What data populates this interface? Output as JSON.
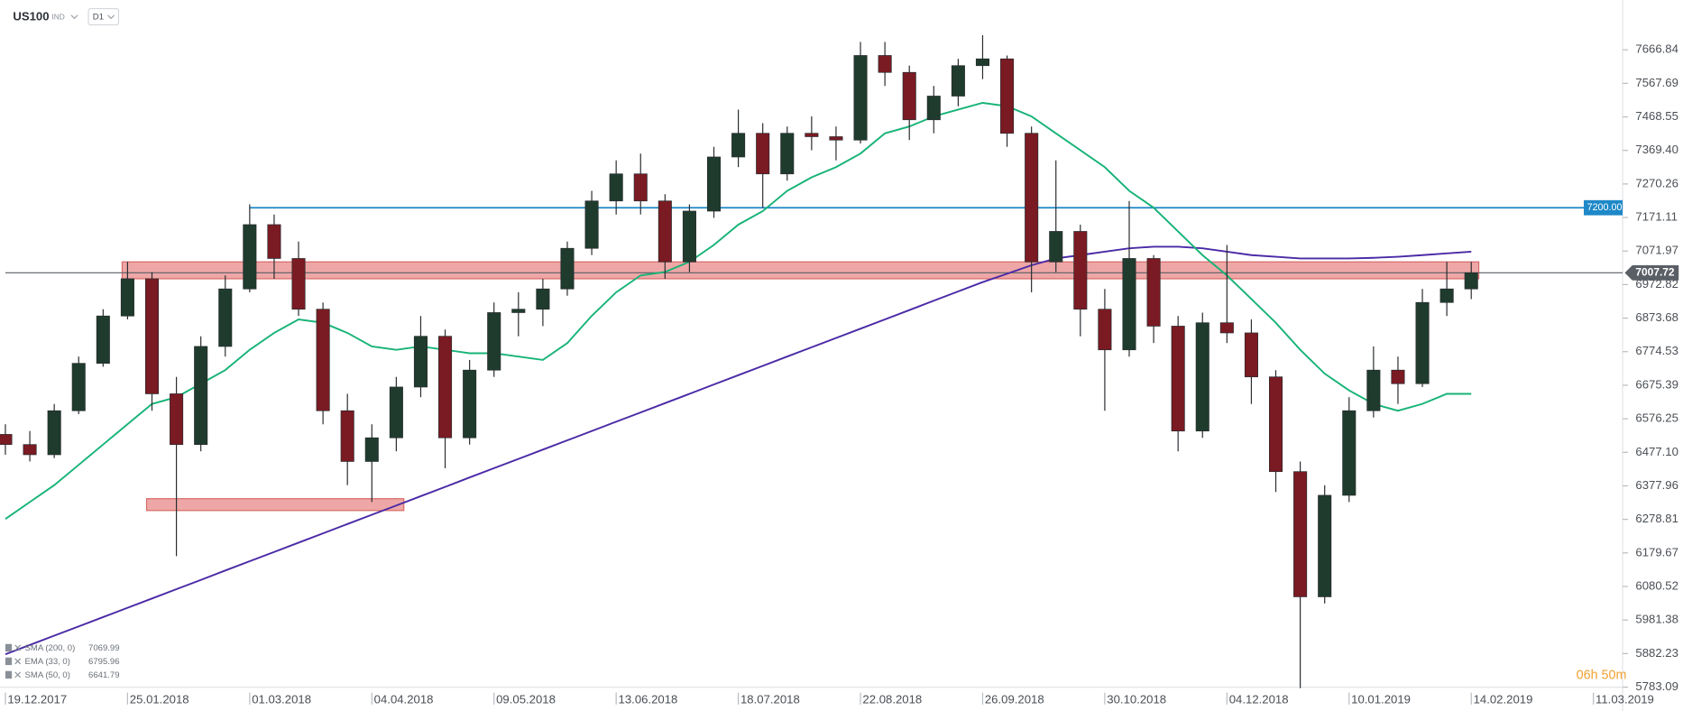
{
  "header": {
    "symbol": "US100",
    "class": "IND",
    "interval": "D1"
  },
  "timer": "06h 50m",
  "chart_data": {
    "type": "candlestick",
    "categories": [
      "19.12.2017",
      null,
      null,
      null,
      null,
      "25.01.2018",
      null,
      null,
      null,
      null,
      "01.03.2018",
      null,
      null,
      null,
      null,
      "04.04.2018",
      null,
      null,
      null,
      null,
      "09.05.2018",
      null,
      null,
      null,
      null,
      "13.06.2018",
      null,
      null,
      null,
      null,
      "18.07.2018",
      null,
      null,
      null,
      null,
      "22.08.2018",
      null,
      null,
      null,
      null,
      "26.09.2018",
      null,
      null,
      null,
      null,
      "30.10.2018",
      null,
      null,
      null,
      null,
      "04.12.2018",
      null,
      null,
      null,
      null,
      "10.01.2019",
      null,
      null,
      null,
      null,
      "14.02.2019",
      null,
      null,
      null,
      null,
      "11.03.2019"
    ],
    "open": [
      6530,
      6500,
      6470,
      6600,
      6740,
      6880,
      6990,
      6650,
      6500,
      6790,
      6960,
      7150,
      7050,
      6900,
      6600,
      6450,
      6520,
      6670,
      6820,
      6520,
      6720,
      6890,
      6900,
      6960,
      7080,
      7220,
      7300,
      7220,
      7040,
      7190,
      7350,
      7420,
      7300,
      7420,
      7410,
      7400,
      7650,
      7600,
      7460,
      7530,
      7620,
      7640,
      7420,
      7040,
      7130,
      6900,
      6780,
      7050,
      6850,
      6540,
      6860,
      6830,
      6700,
      6420,
      6050,
      6350,
      6600,
      6720,
      6680,
      6920,
      6960,
      null,
      null,
      null,
      null,
      null
    ],
    "high": [
      6560,
      6540,
      6620,
      6760,
      6900,
      7040,
      7010,
      6700,
      6820,
      7000,
      7210,
      7180,
      7100,
      6920,
      6650,
      6560,
      6700,
      6880,
      6840,
      6750,
      6920,
      6950,
      6990,
      7100,
      7250,
      7340,
      7360,
      7240,
      7210,
      7380,
      7490,
      7450,
      7440,
      7470,
      7440,
      7690,
      7690,
      7620,
      7560,
      7640,
      7710,
      7650,
      7440,
      7340,
      7150,
      6960,
      7220,
      7060,
      6880,
      6890,
      7090,
      6870,
      6720,
      6450,
      6380,
      6640,
      6790,
      6760,
      6960,
      7040,
      7040,
      null,
      null,
      null,
      null,
      null
    ],
    "low": [
      6470,
      6450,
      6460,
      6590,
      6730,
      6870,
      6600,
      6170,
      6480,
      6760,
      6950,
      6990,
      6880,
      6560,
      6380,
      6330,
      6480,
      6640,
      6430,
      6500,
      6700,
      6820,
      6850,
      6940,
      7060,
      7180,
      7180,
      6990,
      7010,
      7170,
      7320,
      7200,
      7280,
      7370,
      7340,
      7390,
      7560,
      7400,
      7420,
      7500,
      7580,
      7380,
      6950,
      7010,
      6820,
      6600,
      6760,
      6800,
      6480,
      6520,
      6800,
      6620,
      6360,
      5780,
      6030,
      6330,
      6580,
      6620,
      6670,
      6880,
      6930,
      null,
      null,
      null,
      null,
      null
    ],
    "close": [
      6500,
      6470,
      6600,
      6740,
      6880,
      6990,
      6650,
      6500,
      6790,
      6960,
      7150,
      7050,
      6900,
      6600,
      6450,
      6520,
      6670,
      6820,
      6520,
      6720,
      6890,
      6900,
      6960,
      7080,
      7220,
      7300,
      7220,
      7040,
      7190,
      7350,
      7420,
      7300,
      7420,
      7410,
      7400,
      7650,
      7600,
      7460,
      7530,
      7620,
      7640,
      7420,
      7040,
      7130,
      6900,
      6780,
      7050,
      6850,
      6540,
      6860,
      6830,
      6700,
      6420,
      6050,
      6350,
      6600,
      6720,
      6680,
      6920,
      6960,
      7007.72,
      null,
      null,
      null,
      null,
      null
    ],
    "up_color": "#1f3b2d",
    "down_color": "#7a1a22",
    "lines": [
      {
        "color": "#4a2aa6",
        "values": [
          5880,
          5907.5,
          5935,
          5962.5,
          5990,
          6017.5,
          6045,
          6072.5,
          6100,
          6127.5,
          6155,
          6182.5,
          6210,
          6237.5,
          6265,
          6292.5,
          6320,
          6347.5,
          6375,
          6402.5,
          6430,
          6457.5,
          6485,
          6512.5,
          6540,
          6567.5,
          6595,
          6622.5,
          6650,
          6677.5,
          6705,
          6732.5,
          6760,
          6787.5,
          6815,
          6842.5,
          6870,
          6897.5,
          6925,
          6952.5,
          6980,
          7005,
          7030,
          7050,
          7060,
          7070,
          7080,
          7085,
          7085,
          7080,
          7070,
          7060,
          7055,
          7050,
          7050,
          7050,
          7052,
          7055,
          7060,
          7065,
          7070,
          null,
          null,
          null,
          null,
          null
        ]
      },
      {
        "color": "#17b377",
        "values": [
          6280,
          6330,
          6380,
          6440,
          6500,
          6560,
          6620,
          6640,
          6680,
          6720,
          6780,
          6830,
          6870,
          6860,
          6830,
          6790,
          6780,
          6790,
          6780,
          6770,
          6770,
          6760,
          6750,
          6800,
          6880,
          6950,
          7000,
          7010,
          7040,
          7090,
          7150,
          7190,
          7250,
          7290,
          7320,
          7360,
          7420,
          7440,
          7470,
          7490,
          7510,
          7500,
          7470,
          7420,
          7370,
          7320,
          7250,
          7200,
          7130,
          7060,
          7000,
          6930,
          6860,
          6780,
          6710,
          6660,
          6620,
          6600,
          6620,
          6650,
          6650,
          null,
          null,
          null,
          null,
          null
        ]
      }
    ],
    "indicators": [
      {
        "name": "SMA (200, 0)",
        "value": 7069.99
      },
      {
        "name": "EMA (33, 0)",
        "value": 6795.96
      },
      {
        "name": "SMA (50, 0)",
        "value": 6641.79
      }
    ],
    "zones": [
      {
        "from": 6990,
        "to": 7040,
        "start": 5,
        "end": 60,
        "color": "#e88a88"
      },
      {
        "from": 6305,
        "to": 6340,
        "start": 6,
        "end": 16,
        "color": "#e88a88"
      }
    ],
    "levels": [
      {
        "value": 7200,
        "label": "7200.00",
        "color": "#1e88c8",
        "start": 10
      },
      {
        "value": 7007.72,
        "color": "#5a5f66",
        "start": 0
      }
    ],
    "ylim": [
      5738,
      7814
    ],
    "yticks": [
      7666.84,
      7567.69,
      7468.55,
      {
        "value": 7369.4,
        "label": "7369.40"
      },
      7270.26,
      7171.11,
      7071.97,
      6972.82,
      6873.68,
      6774.53,
      6675.39,
      6576.25,
      {
        "value": 6477.1,
        "label": "6477.10"
      },
      6377.96,
      6278.81,
      6179.67,
      6080.52,
      5981.38,
      5882.23,
      5783.09
    ]
  }
}
